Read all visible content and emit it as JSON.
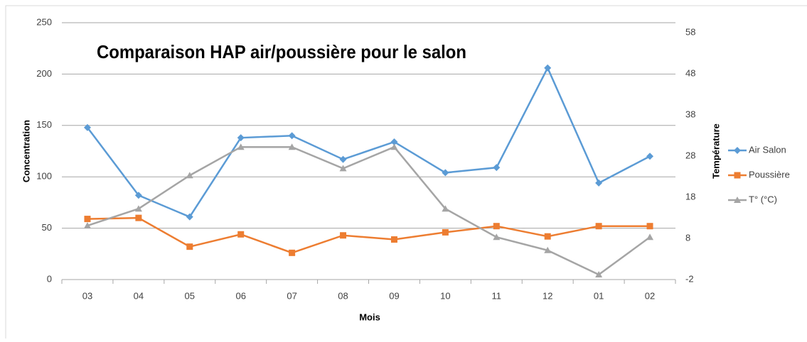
{
  "chart_data": {
    "type": "line",
    "title": "Comparaison HAP air/poussière pour le salon",
    "xlabel": "Mois",
    "ylabel": "Concentration",
    "y2label": "Température",
    "categories": [
      "03",
      "04",
      "05",
      "06",
      "07",
      "08",
      "09",
      "10",
      "11",
      "12",
      "01",
      "02"
    ],
    "series": [
      {
        "name": "Air Salon",
        "color": "#5b9bd5",
        "marker": "diamond",
        "values": [
          148,
          82,
          61,
          138,
          140,
          117,
          134,
          104,
          109,
          206,
          94,
          120
        ]
      },
      {
        "name": "Poussière",
        "color": "#ed7d31",
        "marker": "square",
        "values": [
          59,
          60,
          32,
          44,
          26,
          43,
          39,
          46,
          52,
          42,
          52,
          52
        ]
      },
      {
        "name": "T° (°C)",
        "color": "#a5a5a5",
        "marker": "triangle",
        "axis": "y2",
        "values": [
          11.1,
          15.2,
          23.3,
          30.2,
          30.2,
          25,
          30.2,
          15.2,
          8.3,
          5.1,
          -0.8,
          8.3
        ]
      }
    ],
    "ylim": [
      0,
      250
    ],
    "yticks": [
      0,
      50,
      100,
      150,
      200,
      250
    ],
    "y2lim": [
      -2,
      60.4
    ],
    "y2ticks": [
      -2,
      8,
      18,
      28,
      38,
      48,
      58
    ],
    "grid": true,
    "legend": "right"
  }
}
